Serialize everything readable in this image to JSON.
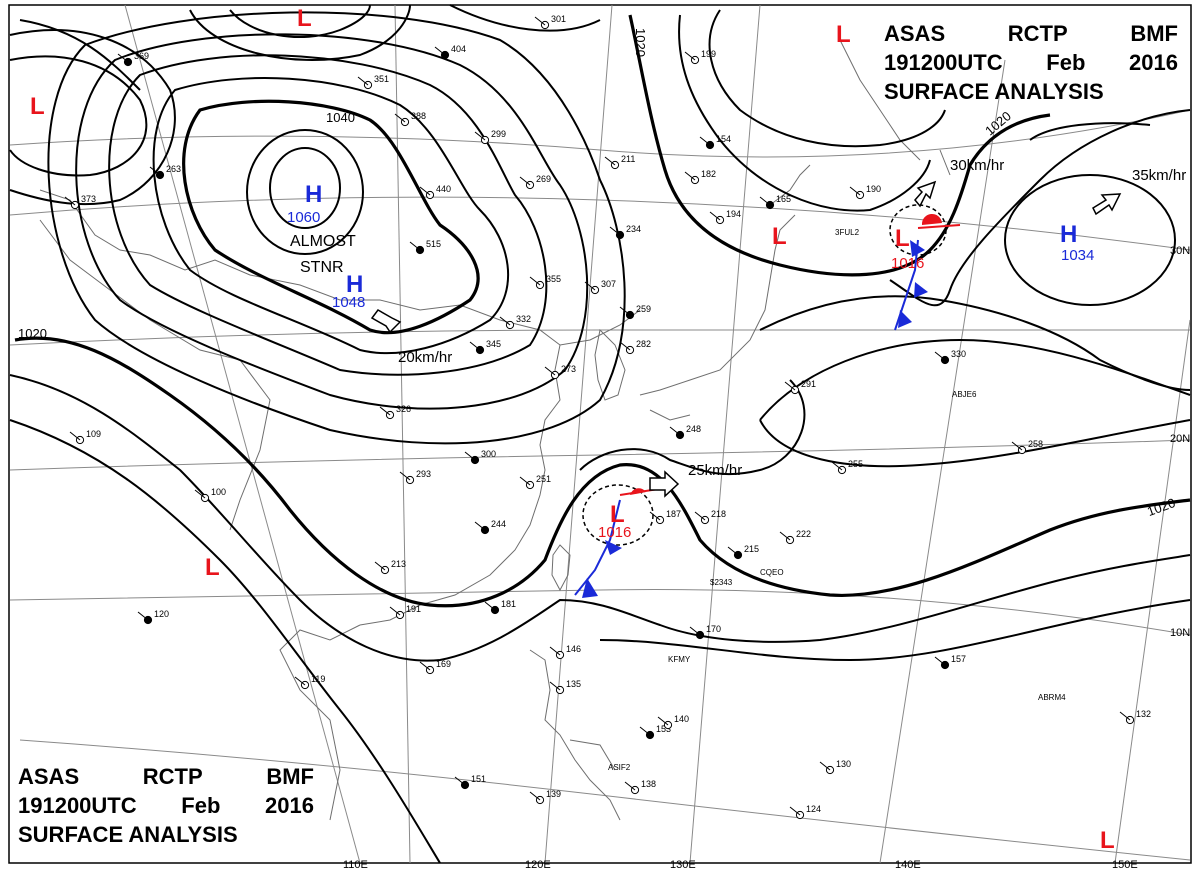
{
  "header": {
    "line1": [
      "ASAS",
      "RCTP",
      "BMF"
    ],
    "line2": [
      "191200UTC",
      "Feb",
      "2016"
    ],
    "line3": "SURFACE ANALYSIS"
  },
  "isobar_labels": [
    "1040",
    "1020",
    "1020",
    "1020",
    "1020"
  ],
  "pressure_centers": [
    {
      "type": "H",
      "value": "1060",
      "color": "#1a2ad8"
    },
    {
      "type": "H",
      "value": "1048",
      "color": "#1a2ad8"
    },
    {
      "type": "H",
      "value": "1034",
      "color": "#1a2ad8"
    },
    {
      "type": "L",
      "value": "1016",
      "color": "#e8141c"
    },
    {
      "type": "L",
      "value": "1016",
      "color": "#e8141c"
    },
    {
      "type": "L",
      "value": "",
      "color": "#e8141c"
    },
    {
      "type": "L",
      "value": "",
      "color": "#e8141c"
    },
    {
      "type": "L",
      "value": "",
      "color": "#e8141c"
    },
    {
      "type": "L",
      "value": "",
      "color": "#e8141c"
    },
    {
      "type": "L",
      "value": "",
      "color": "#e8141c"
    },
    {
      "type": "L",
      "value": "",
      "color": "#e8141c"
    }
  ],
  "annotations": {
    "almost": "ALMOST",
    "stnr": "STNR"
  },
  "motion_labels": [
    "20km/hr",
    "25km/hr",
    "30km/hr",
    "35km/hr"
  ],
  "latitude_labels": [
    "30N",
    "20N",
    "10N"
  ],
  "longitude_labels": [
    "110E",
    "120E",
    "130E",
    "140E",
    "150E"
  ],
  "station_values": [
    "369",
    "351",
    "388",
    "404",
    "301",
    "299",
    "263",
    "373",
    "440",
    "515",
    "269",
    "211",
    "234",
    "355",
    "307",
    "259",
    "282",
    "332",
    "345",
    "273",
    "326",
    "300",
    "293",
    "251",
    "244",
    "213",
    "191",
    "181",
    "169",
    "119",
    "120",
    "109",
    "100",
    "248",
    "187",
    "218",
    "215",
    "222",
    "291",
    "330",
    "258",
    "255",
    "170",
    "146",
    "135",
    "153",
    "140",
    "138",
    "151",
    "139",
    "130",
    "157",
    "132",
    "124",
    "154",
    "182",
    "194",
    "165",
    "190",
    "199"
  ],
  "station_codes": [
    "3FUL2",
    "ABJE6",
    "CQEO",
    "$2343",
    "KFMY",
    "ABRM4",
    "ASIF2"
  ],
  "colors": {
    "isobar": "#000000",
    "coast": "#6e6e6e",
    "grid": "#8a8a8a",
    "high": "#1a2ad8",
    "low": "#e8141c",
    "cold_front": "#1a2ad8",
    "warm_front": "#e8141c"
  }
}
